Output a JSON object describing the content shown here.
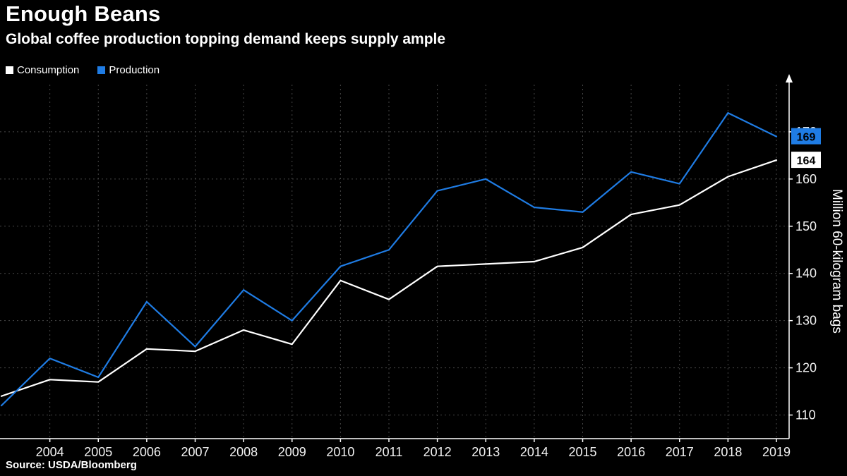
{
  "header": {
    "title": "Enough Beans",
    "subtitle": "Global coffee production topping demand keeps supply ample"
  },
  "legend": [
    {
      "label": "Consumption",
      "color": "#ffffff"
    },
    {
      "label": "Production",
      "color": "#1f7ce4"
    }
  ],
  "footer": {
    "source": "Source: USDA/Bloomberg"
  },
  "chart_data": {
    "type": "line",
    "title": "Enough Beans",
    "subtitle": "Global coffee production topping demand keeps supply ample",
    "ylabel": "Million 60-kilogram bags",
    "xlabel": "",
    "x": [
      2003,
      2004,
      2005,
      2006,
      2007,
      2008,
      2009,
      2010,
      2011,
      2012,
      2013,
      2014,
      2015,
      2016,
      2017,
      2018,
      2019
    ],
    "xticks": [
      2004,
      2005,
      2006,
      2007,
      2008,
      2009,
      2010,
      2011,
      2012,
      2013,
      2014,
      2015,
      2016,
      2017,
      2018,
      2019
    ],
    "yticks": [
      110,
      120,
      130,
      140,
      150,
      160,
      170
    ],
    "ylim": [
      105,
      180
    ],
    "grid": true,
    "legend_position": "top-left",
    "background": "#000000",
    "grid_color": "#474747",
    "axis_color": "#ffffff",
    "series": [
      {
        "name": "Consumption",
        "color": "#ffffff",
        "values": [
          114,
          117.5,
          117,
          124,
          123.5,
          128,
          125,
          138.5,
          134.5,
          141.5,
          142,
          142.5,
          145.5,
          152.5,
          154.5,
          160.5,
          164
        ],
        "end_label": "164",
        "end_label_bg": "#ffffff",
        "end_label_color": "#000000"
      },
      {
        "name": "Production",
        "color": "#1f7ce4",
        "values": [
          112,
          122,
          118,
          134,
          124.5,
          136.5,
          130,
          141.5,
          145,
          157.5,
          160,
          154,
          153,
          161.5,
          159,
          174,
          169
        ],
        "end_label": "169",
        "end_label_bg": "#1f7ce4",
        "end_label_color": "#000000"
      }
    ]
  }
}
